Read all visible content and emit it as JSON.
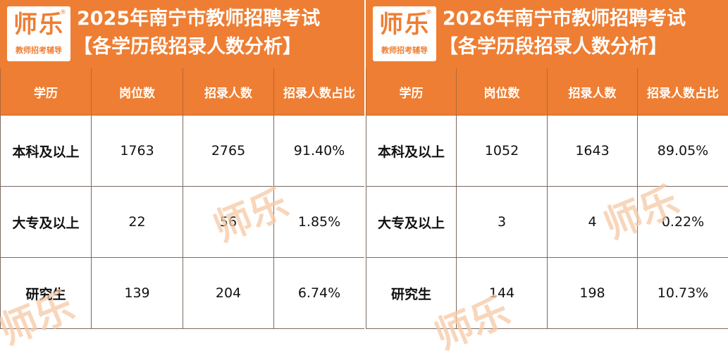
{
  "logo": {
    "main": "师乐",
    "registered": "®",
    "sub": "教师招考辅导"
  },
  "watermark": "师乐",
  "colors": {
    "accent": "#ee7e33",
    "header_text": "#ffffff"
  },
  "panels": [
    {
      "title_line1": "2025年南宁市教师招聘考试",
      "title_line2": "【各学历段招录人数分析】",
      "columns": [
        "学历",
        "岗位数",
        "招录人数",
        "招录人数占比"
      ],
      "rows": [
        [
          "本科及以上",
          "1763",
          "2765",
          "91.40%"
        ],
        [
          "大专及以上",
          "22",
          "56",
          "1.85%"
        ],
        [
          "研究生",
          "139",
          "204",
          "6.74%"
        ]
      ]
    },
    {
      "title_line1": "2026年南宁市教师招聘考试",
      "title_line2": "【各学历段招录人数分析】",
      "columns": [
        "学历",
        "岗位数",
        "招录人数",
        "招录人数占比"
      ],
      "rows": [
        [
          "本科及以上",
          "1052",
          "1643",
          "89.05%"
        ],
        [
          "大专及以上",
          "3",
          "4",
          "0.22%"
        ],
        [
          "研究生",
          "144",
          "198",
          "10.73%"
        ]
      ]
    }
  ]
}
